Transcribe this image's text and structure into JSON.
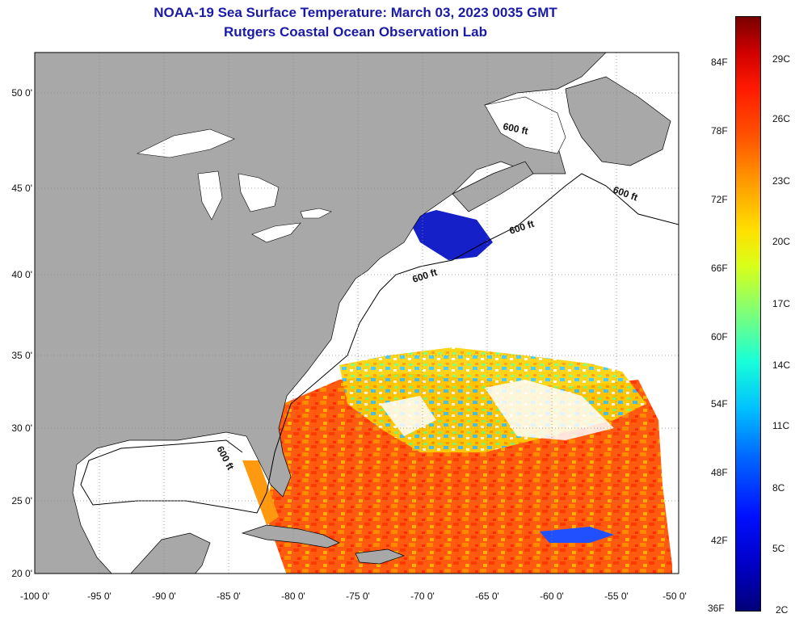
{
  "title": {
    "line1": "NOAA-19 Sea Surface Temperature:  March 03, 2023 0035 GMT",
    "line2": "Rutgers Coastal Ocean Observation Lab"
  },
  "map": {
    "lon_range": [
      -100,
      -50
    ],
    "lat_range": [
      20,
      52.5
    ],
    "lon_ticks": [
      "-100 0'",
      "-95 0'",
      "-90 0'",
      "-85 0'",
      "-80 0'",
      "-75 0'",
      "-70 0'",
      "-65 0'",
      "-60 0'",
      "-55 0'",
      "-50 0'"
    ],
    "lat_ticks": [
      "20 0'",
      "25 0'",
      "30 0'",
      "35 0'",
      "40 0'",
      "45 0'",
      "50 0'"
    ],
    "contour_labels": [
      "600 ft",
      "600 ft",
      "600 ft",
      "600 ft",
      "600 ft"
    ],
    "colors": {
      "land": "#a8a8a8",
      "water": "#ffffff",
      "gridline": "#888888"
    }
  },
  "colorbar": {
    "fahrenheit_labels": [
      "84F",
      "78F",
      "72F",
      "66F",
      "60F",
      "54F",
      "48F",
      "42F",
      "36F"
    ],
    "celsius_labels": [
      "29C",
      "26C",
      "23C",
      "20C",
      "17C",
      "14C",
      "11C",
      "8C",
      "5C",
      "2C"
    ]
  }
}
